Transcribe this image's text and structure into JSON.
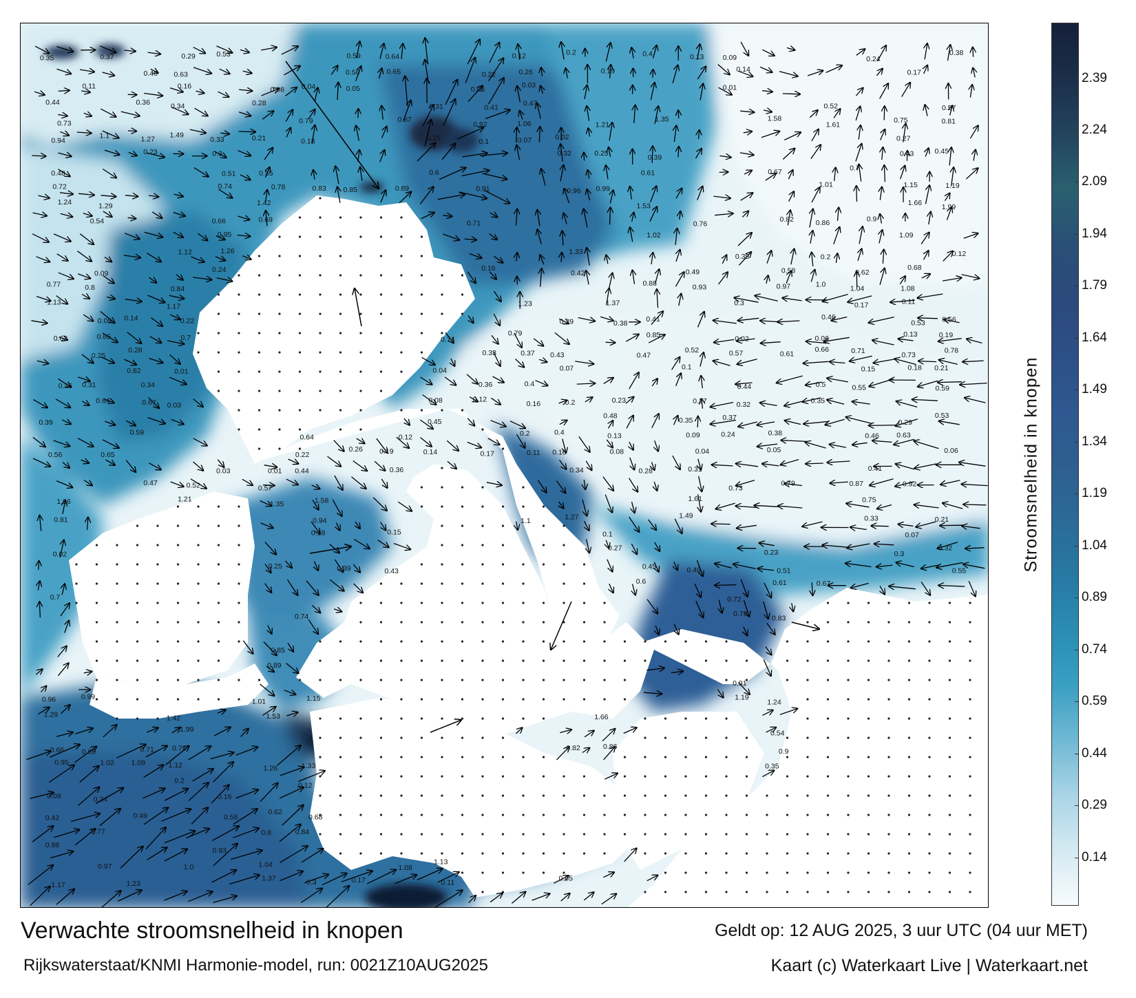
{
  "title": "Verwachte stroomsnelheid in knopen",
  "subtitle": "Rijkswaterstaat/KNMI Harmonie-model, run: 0021Z10AUG2025",
  "valid_time": "Geldt op: 12 AUG 2025, 3 uur UTC (04 uur MET)",
  "credit": "Kaart (c) Waterkaart Live | Waterkaart.net",
  "colorbar": {
    "label": "Stroomsnelheid in knopen",
    "ticks": [
      "2.39",
      "2.24",
      "2.09",
      "1.94",
      "1.79",
      "1.64",
      "1.49",
      "1.34",
      "1.19",
      "1.04",
      "0.89",
      "0.74",
      "0.59",
      "0.44",
      "0.29",
      "0.14"
    ],
    "tick_values": [
      2.39,
      2.24,
      2.09,
      1.94,
      1.79,
      1.64,
      1.49,
      1.34,
      1.19,
      1.04,
      0.89,
      0.74,
      0.59,
      0.44,
      0.29,
      0.14
    ],
    "range": [
      0,
      2.55
    ],
    "colors": [
      "#f7fbfd",
      "#d4e9f1",
      "#a9d4e6",
      "#6fb8d3",
      "#3a9fc2",
      "#2a8cb2",
      "#2878a3",
      "#2b6a97",
      "#2e5e8f",
      "#2f5890",
      "#2c4f86",
      "#2b4a7c",
      "#2a4f75",
      "#2a6070",
      "#23445d",
      "#1b2e4a",
      "#15203a"
    ]
  },
  "current_labels": [
    {
      "text": "0.35"
    },
    {
      "text": "0.37"
    },
    {
      "text": "0.29"
    },
    {
      "text": "0.53"
    },
    {
      "text": "0.59"
    },
    {
      "text": "0.64"
    },
    {
      "text": "0.12"
    },
    {
      "text": "0.2"
    },
    {
      "text": "0.4"
    },
    {
      "text": "0.13"
    },
    {
      "text": "0.09"
    },
    {
      "text": "0.24"
    },
    {
      "text": "0.38"
    },
    {
      "text": "0.46"
    },
    {
      "text": "0.63"
    },
    {
      "text": "0.56"
    },
    {
      "text": "0.65"
    },
    {
      "text": "0.22"
    },
    {
      "text": "0.26"
    },
    {
      "text": "0.19"
    },
    {
      "text": "0.14"
    },
    {
      "text": "0.17"
    },
    {
      "text": "0.11"
    },
    {
      "text": "0.16"
    },
    {
      "text": "0.08"
    },
    {
      "text": "0.04"
    },
    {
      "text": "0.05"
    },
    {
      "text": "0.06"
    },
    {
      "text": "0.03"
    },
    {
      "text": "0.01"
    },
    {
      "text": "0.44"
    },
    {
      "text": "0.36"
    },
    {
      "text": "0.34"
    },
    {
      "text": "0.28"
    },
    {
      "text": "0.31"
    },
    {
      "text": "0.41"
    },
    {
      "text": "0.47"
    },
    {
      "text": "0.52"
    },
    {
      "text": "0.57"
    },
    {
      "text": "0.73"
    },
    {
      "text": "0.79"
    },
    {
      "text": "0.87"
    },
    {
      "text": "0.92"
    },
    {
      "text": "1.06"
    },
    {
      "text": "1.21"
    },
    {
      "text": "1.35"
    },
    {
      "text": "1.58"
    },
    {
      "text": "1.61"
    },
    {
      "text": "0.75"
    },
    {
      "text": "0.81"
    },
    {
      "text": "0.94"
    },
    {
      "text": "1.1"
    },
    {
      "text": "1.27"
    },
    {
      "text": "1.49"
    },
    {
      "text": "0.33"
    },
    {
      "text": "0.21"
    },
    {
      "text": "0.18"
    },
    {
      "text": "0.15"
    },
    {
      "text": "0.1"
    },
    {
      "text": "0.07"
    },
    {
      "text": "0.02"
    },
    {
      "text": "0.27"
    },
    {
      "text": "0.23"
    },
    {
      "text": "0.3"
    },
    {
      "text": "0.32"
    },
    {
      "text": "0.25"
    },
    {
      "text": "0.39"
    },
    {
      "text": "0.43"
    },
    {
      "text": "0.45"
    },
    {
      "text": "0.48"
    },
    {
      "text": "0.51"
    },
    {
      "text": "0.55"
    },
    {
      "text": "0.6"
    },
    {
      "text": "0.61"
    },
    {
      "text": "0.67"
    },
    {
      "text": "0.7"
    },
    {
      "text": "0.72"
    },
    {
      "text": "0.74"
    },
    {
      "text": "0.78"
    },
    {
      "text": "0.83"
    },
    {
      "text": "0.85"
    },
    {
      "text": "0.89"
    },
    {
      "text": "0.91"
    },
    {
      "text": "0.96"
    },
    {
      "text": "0.99"
    },
    {
      "text": "1.01"
    },
    {
      "text": "1.15"
    },
    {
      "text": "1.19"
    },
    {
      "text": "1.24"
    },
    {
      "text": "1.29"
    },
    {
      "text": "1.42"
    },
    {
      "text": "1.53"
    },
    {
      "text": "1.66"
    },
    {
      "text": "1.99"
    },
    {
      "text": "0.54"
    },
    {
      "text": "0.66"
    },
    {
      "text": "0.69"
    },
    {
      "text": "0.71"
    },
    {
      "text": "0.76"
    },
    {
      "text": "0.82"
    },
    {
      "text": "0.86"
    },
    {
      "text": "0.9"
    },
    {
      "text": "0.95"
    },
    {
      "text": "1.02"
    },
    {
      "text": "1.09"
    },
    {
      "text": "1.12"
    },
    {
      "text": "1.26"
    },
    {
      "text": "1.33"
    },
    {
      "text": "0.35"
    },
    {
      "text": "0.2"
    },
    {
      "text": "0.12"
    },
    {
      "text": "0.09"
    },
    {
      "text": "0.24"
    },
    {
      "text": "0.16"
    },
    {
      "text": "0.42"
    },
    {
      "text": "0.49"
    },
    {
      "text": "0.58"
    },
    {
      "text": "0.62"
    },
    {
      "text": "0.68"
    },
    {
      "text": "0.77"
    },
    {
      "text": "0.8"
    },
    {
      "text": "0.84"
    },
    {
      "text": "0.88"
    },
    {
      "text": "0.93"
    },
    {
      "text": "0.97"
    },
    {
      "text": "1.0"
    },
    {
      "text": "1.04"
    },
    {
      "text": "1.08"
    },
    {
      "text": "1.13"
    },
    {
      "text": "1.17"
    },
    {
      "text": "1.23"
    },
    {
      "text": "1.37"
    },
    {
      "text": "0.3"
    },
    {
      "text": "0.17"
    },
    {
      "text": "0.11"
    },
    {
      "text": "0.05"
    },
    {
      "text": "0.14"
    },
    {
      "text": "0.22"
    },
    {
      "text": "0.29"
    },
    {
      "text": "0.38"
    },
    {
      "text": "0.41"
    },
    {
      "text": "0.46"
    },
    {
      "text": "0.53"
    },
    {
      "text": "0.56"
    },
    {
      "text": "0.63"
    },
    {
      "text": "0.65"
    },
    {
      "text": "0.7"
    },
    {
      "text": "0.74"
    },
    {
      "text": "0.79"
    },
    {
      "text": "0.85"
    },
    {
      "text": "0.02"
    },
    {
      "text": "0.06"
    },
    {
      "text": "0.13"
    },
    {
      "text": "0.19"
    },
    {
      "text": "0.25"
    },
    {
      "text": "0.28"
    },
    {
      "text": "0.33"
    },
    {
      "text": "0.37"
    },
    {
      "text": "0.43"
    },
    {
      "text": "0.47"
    },
    {
      "text": "0.52"
    },
    {
      "text": "0.57"
    },
    {
      "text": "0.61"
    },
    {
      "text": "0.66"
    },
    {
      "text": "0.71"
    },
    {
      "text": "0.73"
    },
    {
      "text": "0.78"
    },
    {
      "text": "0.82"
    },
    {
      "text": "0.01"
    },
    {
      "text": "0.04"
    },
    {
      "text": "0.07"
    },
    {
      "text": "0.1"
    },
    {
      "text": "0.15"
    },
    {
      "text": "0.18"
    },
    {
      "text": "0.21"
    },
    {
      "text": "0.26"
    },
    {
      "text": "0.31"
    },
    {
      "text": "0.34"
    },
    {
      "text": "0.36"
    },
    {
      "text": "0.4"
    },
    {
      "text": "0.44"
    },
    {
      "text": "0.5"
    },
    {
      "text": "0.55"
    },
    {
      "text": "0.59"
    },
    {
      "text": "0.64"
    },
    {
      "text": "0.67"
    },
    {
      "text": "0.03"
    },
    {
      "text": "0.08"
    },
    {
      "text": "0.12"
    },
    {
      "text": "0.16"
    },
    {
      "text": "0.2"
    },
    {
      "text": "0.23"
    },
    {
      "text": "0.27"
    },
    {
      "text": "0.32"
    },
    {
      "text": "0.35"
    },
    {
      "text": "0.39"
    },
    {
      "text": "0.45"
    },
    {
      "text": "0.48"
    }
  ]
}
